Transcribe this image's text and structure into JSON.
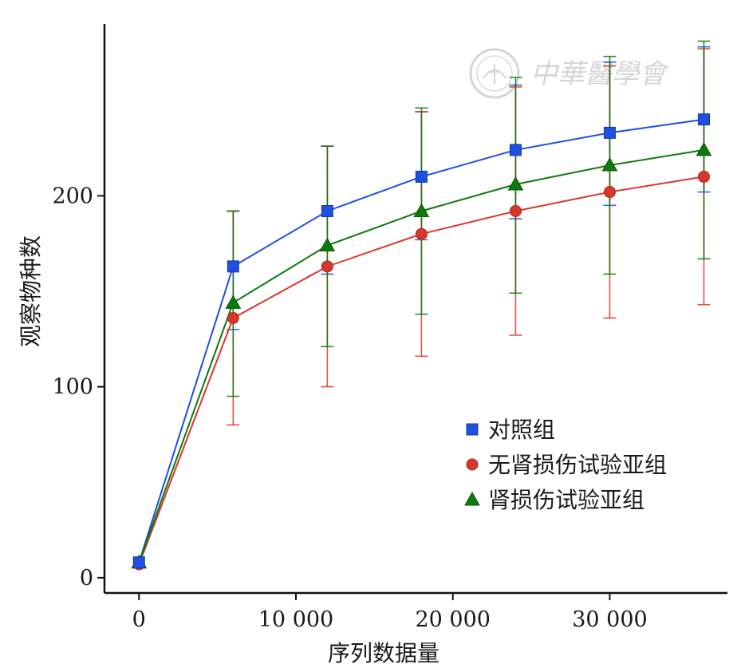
{
  "chart_data": {
    "type": "line",
    "title": "",
    "xlabel": "序列数据量",
    "ylabel": "观察物种数",
    "xlim": [
      -2200,
      37500
    ],
    "ylim": [
      -8,
      290
    ],
    "x_ticks": [
      0,
      10000,
      20000,
      30000
    ],
    "x_tick_labels": [
      "0",
      "10 000",
      "20 000",
      "30 000"
    ],
    "y_ticks": [
      0,
      100,
      200
    ],
    "y_tick_labels": [
      "0",
      "100",
      "200"
    ],
    "x": [
      0,
      6000,
      12000,
      18000,
      24000,
      30000,
      36000
    ],
    "series": [
      {
        "name": "对照组",
        "color": "#1f4fe0",
        "marker": "square",
        "values": [
          8,
          163,
          192,
          210,
          224,
          233,
          240
        ],
        "error_lower": [
          1,
          33,
          33,
          33,
          36,
          38,
          38
        ],
        "error_upper": [
          1,
          29,
          34,
          34,
          34,
          37,
          38
        ]
      },
      {
        "name": "无肾损伤试验亚组",
        "color": "#d9362b",
        "marker": "circle",
        "values": [
          7,
          136,
          163,
          180,
          192,
          202,
          210
        ],
        "error_lower": [
          1,
          56,
          63,
          64,
          65,
          66,
          67
        ],
        "error_upper": [
          1,
          56,
          63,
          64,
          65,
          66,
          67
        ]
      },
      {
        "name": "肾损伤试验亚组",
        "color": "#0c7a0c",
        "marker": "triangle",
        "values": [
          8,
          144,
          174,
          192,
          206,
          216,
          224
        ],
        "error_lower": [
          1,
          49,
          53,
          54,
          57,
          57,
          57
        ],
        "error_upper": [
          1,
          48,
          52,
          54,
          56,
          57,
          57
        ]
      }
    ],
    "grid": false,
    "legend_position": "center-right"
  },
  "watermark": {
    "text": "中華醫學會",
    "color": "#d6d6d6"
  }
}
